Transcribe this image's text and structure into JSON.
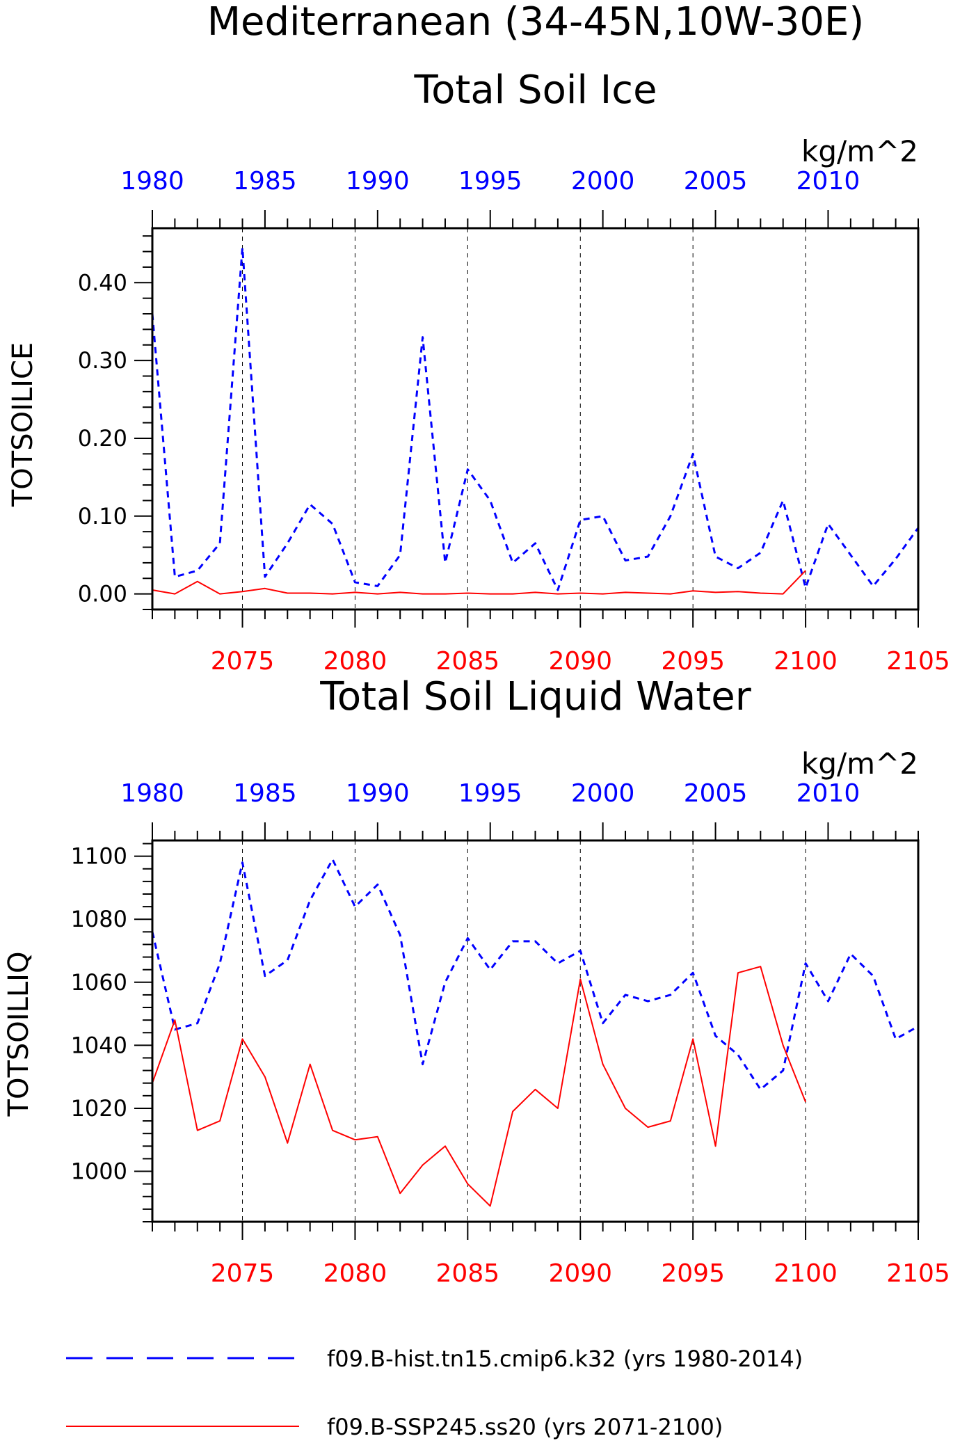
{
  "title_line1": "Mediterranean (34-45N,10W-30E)",
  "legend": [
    {
      "label": "f09.B-hist.tn15.cmip6.k32 (yrs 1980-2014)",
      "color": "#0000ff",
      "style": "dashed"
    },
    {
      "label": "f09.B-SSP245.ss20 (yrs 2071-2100)",
      "color": "#ff0000",
      "style": "solid"
    }
  ],
  "chart_data": [
    {
      "type": "line",
      "title": "Total Soil Ice",
      "units": "kg/m^2",
      "ylabel": "TOTSOILICE",
      "ylim": [
        -0.02,
        0.47
      ],
      "yticks": [
        0.0,
        0.1,
        0.2,
        0.3,
        0.4
      ],
      "ytick_labels": [
        "0.00",
        "0.10",
        "0.20",
        "0.30",
        "0.40"
      ],
      "top_axis": {
        "color": "#0000ff",
        "range": [
          1980,
          2014
        ],
        "ticks": [
          "1980",
          "1985",
          "1990",
          "1995",
          "2000",
          "2005",
          "2010"
        ]
      },
      "bottom_axis": {
        "color": "#ff0000",
        "range": [
          2071,
          2105
        ],
        "ticks": [
          "2075",
          "2080",
          "2085",
          "2090",
          "2095",
          "2100",
          "2105"
        ]
      },
      "grid": "vertical dashed at major bottom ticks",
      "series": [
        {
          "color": "#0000ff",
          "style": "dashed",
          "axis": "top",
          "x": [
            1980,
            1981,
            1982,
            1983,
            1984,
            1985,
            1986,
            1987,
            1988,
            1989,
            1990,
            1991,
            1992,
            1993,
            1994,
            1995,
            1996,
            1997,
            1998,
            1999,
            2000,
            2001,
            2002,
            2003,
            2004,
            2005,
            2006,
            2007,
            2008,
            2009,
            2010,
            2011,
            2012,
            2013,
            2014
          ],
          "y": [
            0.36,
            0.022,
            0.03,
            0.065,
            0.445,
            0.022,
            0.065,
            0.115,
            0.09,
            0.015,
            0.01,
            0.05,
            0.33,
            0.04,
            0.16,
            0.12,
            0.04,
            0.065,
            0.005,
            0.095,
            0.1,
            0.043,
            0.048,
            0.1,
            0.18,
            0.048,
            0.033,
            0.053,
            0.12,
            0.008,
            0.09,
            0.05,
            0.01,
            0.045,
            0.085
          ]
        },
        {
          "color": "#ff0000",
          "style": "solid",
          "axis": "bottom",
          "x": [
            2071,
            2072,
            2073,
            2074,
            2075,
            2076,
            2077,
            2078,
            2079,
            2080,
            2081,
            2082,
            2083,
            2084,
            2085,
            2086,
            2087,
            2088,
            2089,
            2090,
            2091,
            2092,
            2093,
            2094,
            2095,
            2096,
            2097,
            2098,
            2099,
            2100
          ],
          "y": [
            0.005,
            0.0,
            0.016,
            0.0,
            0.003,
            0.007,
            0.001,
            0.001,
            0.0,
            0.002,
            0.0,
            0.002,
            0.0,
            0.0,
            0.001,
            0.0,
            0.0,
            0.002,
            0.0,
            0.001,
            0.0,
            0.002,
            0.001,
            0.0,
            0.004,
            0.002,
            0.003,
            0.001,
            0.0,
            0.03
          ]
        }
      ]
    },
    {
      "type": "line",
      "title": "Total Soil Liquid Water",
      "units": "kg/m^2",
      "ylabel": "TOTSOILLIQ",
      "ylim": [
        984,
        1105
      ],
      "yticks": [
        1000,
        1020,
        1040,
        1060,
        1080,
        1100
      ],
      "ytick_labels": [
        "1000",
        "1020",
        "1040",
        "1060",
        "1080",
        "1100"
      ],
      "top_axis": {
        "color": "#0000ff",
        "range": [
          1980,
          2014
        ],
        "ticks": [
          "1980",
          "1985",
          "1990",
          "1995",
          "2000",
          "2005",
          "2010"
        ]
      },
      "bottom_axis": {
        "color": "#ff0000",
        "range": [
          2071,
          2105
        ],
        "ticks": [
          "2075",
          "2080",
          "2085",
          "2090",
          "2095",
          "2100",
          "2105"
        ]
      },
      "grid": "vertical dashed at major bottom ticks",
      "series": [
        {
          "color": "#0000ff",
          "style": "dashed",
          "axis": "top",
          "x": [
            1980,
            1981,
            1982,
            1983,
            1984,
            1985,
            1986,
            1987,
            1988,
            1989,
            1990,
            1991,
            1992,
            1993,
            1994,
            1995,
            1996,
            1997,
            1998,
            1999,
            2000,
            2001,
            2002,
            2003,
            2004,
            2005,
            2006,
            2007,
            2008,
            2009,
            2010,
            2011,
            2012,
            2013,
            2014
          ],
          "y": [
            1076,
            1045,
            1047,
            1066,
            1098,
            1062,
            1067,
            1086,
            1099,
            1084,
            1091,
            1075,
            1034,
            1060,
            1074,
            1064,
            1073,
            1073,
            1066,
            1070,
            1047,
            1056,
            1054,
            1056,
            1063,
            1043,
            1037,
            1026,
            1032,
            1066,
            1054,
            1069,
            1062,
            1042,
            1046
          ]
        },
        {
          "color": "#ff0000",
          "style": "solid",
          "axis": "bottom",
          "x": [
            2071,
            2072,
            2073,
            2074,
            2075,
            2076,
            2077,
            2078,
            2079,
            2080,
            2081,
            2082,
            2083,
            2084,
            2085,
            2086,
            2087,
            2088,
            2089,
            2090,
            2091,
            2092,
            2093,
            2094,
            2095,
            2096,
            2097,
            2098,
            2099,
            2100
          ],
          "y": [
            1028,
            1048,
            1013,
            1016,
            1042,
            1030,
            1009,
            1034,
            1013,
            1010,
            1011,
            993,
            1002,
            1008,
            996,
            989,
            1019,
            1026,
            1020,
            1061,
            1034,
            1020,
            1014,
            1016,
            1042,
            1008,
            1063,
            1065,
            1040,
            1022
          ]
        }
      ]
    }
  ]
}
